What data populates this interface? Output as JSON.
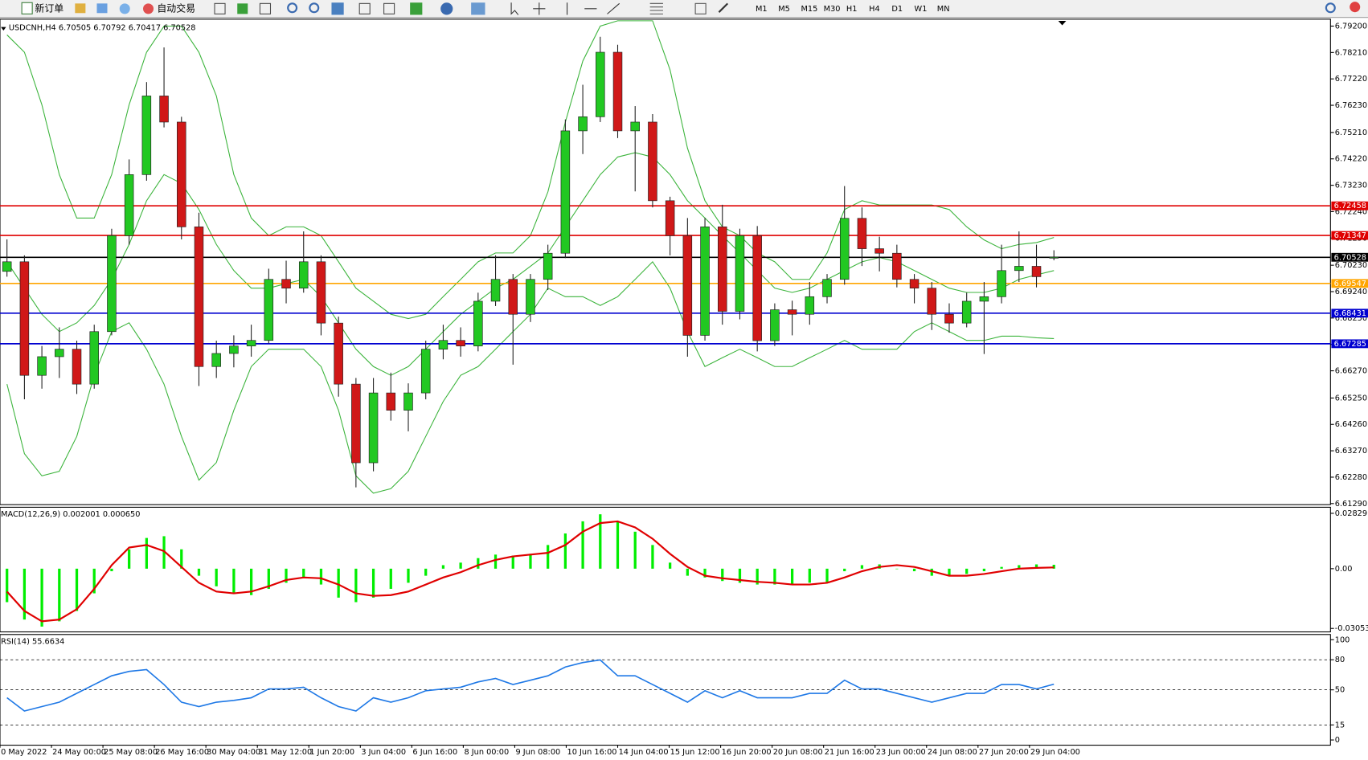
{
  "toolbar": {
    "buttons": [
      "新订单",
      "自动交易"
    ],
    "timeframes": [
      "M1",
      "M5",
      "M15",
      "M30",
      "H1",
      "H4",
      "D1",
      "W1",
      "MN"
    ]
  },
  "chart_data": [
    {
      "type": "candlestick",
      "title": "USDCNH,H4  6.70505 6.70792 6.70417 6.70528",
      "up_color": "#22c822",
      "down_color": "#d01818",
      "wick_color": "#202020",
      "ylim": [
        6.6125,
        6.7946
      ],
      "yticks": [
        {
          "value": 6.792,
          "label": "6.79200"
        },
        {
          "value": 6.7821,
          "label": "6.78210"
        },
        {
          "value": 6.7722,
          "label": "6.77220"
        },
        {
          "value": 6.7623,
          "label": "6.76230"
        },
        {
          "value": 6.7521,
          "label": "6.75210"
        },
        {
          "value": 6.7422,
          "label": "6.74220"
        },
        {
          "value": 6.7323,
          "label": "6.73230"
        },
        {
          "value": 6.7224,
          "label": "6.72240"
        },
        {
          "value": 6.7125,
          "label": "6.71250"
        },
        {
          "value": 6.7023,
          "label": "6.70230"
        },
        {
          "value": 6.6924,
          "label": "6.69240"
        },
        {
          "value": 6.6825,
          "label": "6.68250"
        },
        {
          "value": 6.6726,
          "label": "6.67260"
        },
        {
          "value": 6.6627,
          "label": "6.66270"
        },
        {
          "value": 6.6525,
          "label": "6.65250"
        },
        {
          "value": 6.6426,
          "label": "6.64260"
        },
        {
          "value": 6.6327,
          "label": "6.63270"
        },
        {
          "value": 6.6228,
          "label": "6.62280"
        },
        {
          "value": 6.6129,
          "label": "6.61290"
        }
      ],
      "x_labels": [
        "0 May 2022",
        "24 May 00:00",
        "25 May 08:00",
        "26 May 16:00",
        "30 May 04:00",
        "31 May 12:00",
        "1 Jun 20:00",
        "3 Jun 04:00",
        "6 Jun 16:00",
        "8 Jun 00:00",
        "9 Jun 08:00",
        "10 Jun 16:00",
        "14 Jun 04:00",
        "15 Jun 12:00",
        "16 Jun 20:00",
        "20 Jun 08:00",
        "21 Jun 16:00",
        "23 Jun 00:00",
        "24 Jun 08:00",
        "27 Jun 20:00",
        "29 Jun 04:00"
      ],
      "ohlc": [
        [
          6.7,
          6.712,
          6.698,
          6.7036
        ],
        [
          6.7036,
          6.706,
          6.652,
          6.661
        ],
        [
          6.661,
          6.672,
          6.656,
          6.668
        ],
        [
          6.668,
          6.679,
          6.66,
          6.6708
        ],
        [
          6.6708,
          6.674,
          6.654,
          6.6577
        ],
        [
          6.6577,
          6.68,
          6.656,
          6.6774
        ],
        [
          6.6774,
          6.716,
          6.676,
          6.7134
        ],
        [
          6.7134,
          6.742,
          6.71,
          6.7363
        ],
        [
          6.7363,
          6.771,
          6.734,
          6.7658
        ],
        [
          6.7658,
          6.784,
          6.754,
          6.756
        ],
        [
          6.756,
          6.758,
          6.712,
          6.7167
        ],
        [
          6.7167,
          6.722,
          6.657,
          6.6643
        ],
        [
          6.6643,
          6.674,
          6.66,
          6.6692
        ],
        [
          6.6692,
          6.676,
          6.664,
          6.672
        ],
        [
          6.672,
          6.68,
          6.668,
          6.6741
        ],
        [
          6.6741,
          6.701,
          6.673,
          6.697
        ],
        [
          6.697,
          6.704,
          6.688,
          6.6937
        ],
        [
          6.6937,
          6.715,
          6.692,
          6.7036
        ],
        [
          6.7036,
          6.706,
          6.676,
          6.6806
        ],
        [
          6.6806,
          6.683,
          6.653,
          6.6577
        ],
        [
          6.6577,
          6.66,
          6.619,
          6.6282
        ],
        [
          6.6282,
          6.66,
          6.625,
          6.6544
        ],
        [
          6.6544,
          6.662,
          6.644,
          6.6479
        ],
        [
          6.6479,
          6.658,
          6.64,
          6.6544
        ],
        [
          6.6544,
          6.674,
          6.652,
          6.6708
        ],
        [
          6.6708,
          6.68,
          6.667,
          6.6741
        ],
        [
          6.6741,
          6.679,
          6.668,
          6.672
        ],
        [
          6.672,
          6.692,
          6.67,
          6.6888
        ],
        [
          6.6888,
          6.706,
          6.687,
          6.697
        ],
        [
          6.697,
          6.699,
          6.665,
          6.6839
        ],
        [
          6.6839,
          6.699,
          6.681,
          6.697
        ],
        [
          6.697,
          6.71,
          6.693,
          6.7068
        ],
        [
          6.7068,
          6.757,
          6.705,
          6.7527
        ],
        [
          6.7527,
          6.77,
          6.744,
          6.758
        ],
        [
          6.758,
          6.788,
          6.756,
          6.7822
        ],
        [
          6.7822,
          6.785,
          6.75,
          6.7527
        ],
        [
          6.7527,
          6.762,
          6.73,
          6.756
        ],
        [
          6.756,
          6.759,
          6.724,
          6.7265
        ],
        [
          6.7265,
          6.728,
          6.706,
          6.7134
        ],
        [
          6.7134,
          6.72,
          6.668,
          6.676
        ],
        [
          6.676,
          6.72,
          6.674,
          6.7167
        ],
        [
          6.7167,
          6.725,
          6.68,
          6.685
        ],
        [
          6.685,
          6.716,
          6.682,
          6.7134
        ],
        [
          6.7134,
          6.717,
          6.67,
          6.674
        ],
        [
          6.674,
          6.688,
          6.672,
          6.6856
        ],
        [
          6.6856,
          6.689,
          6.676,
          6.6839
        ],
        [
          6.6839,
          6.696,
          6.68,
          6.6905
        ],
        [
          6.6905,
          6.699,
          6.688,
          6.697
        ],
        [
          6.697,
          6.732,
          6.695,
          6.7199
        ],
        [
          6.7199,
          6.724,
          6.702,
          6.7085
        ],
        [
          6.7085,
          6.713,
          6.7,
          6.7068
        ],
        [
          6.7068,
          6.71,
          6.694,
          6.697
        ],
        [
          6.697,
          6.699,
          6.688,
          6.6937
        ],
        [
          6.6937,
          6.696,
          6.678,
          6.6839
        ],
        [
          6.6839,
          6.688,
          6.677,
          6.6806
        ],
        [
          6.6806,
          6.692,
          6.679,
          6.6888
        ],
        [
          6.6888,
          6.696,
          6.669,
          6.6905
        ],
        [
          6.6905,
          6.71,
          6.688,
          6.7003
        ],
        [
          6.7003,
          6.715,
          6.696,
          6.7019
        ],
        [
          6.7019,
          6.71,
          6.694,
          6.698
        ],
        [
          6.70505,
          6.70792,
          6.70417,
          6.70528
        ]
      ],
      "bands": [
        {
          "color": "#3cb43c",
          "values": [
            6.7887,
            6.7822,
            6.7625,
            6.7363,
            6.72,
            6.72,
            6.7363,
            6.7625,
            6.7822,
            6.792,
            6.792,
            6.7822,
            6.7658,
            6.7363,
            6.72,
            6.7134,
            6.7167,
            6.7167,
            6.7134,
            6.7036,
            6.6937,
            6.6888,
            6.6839,
            6.6823,
            6.6839,
            6.6905,
            6.697,
            6.7036,
            6.7069,
            6.7069,
            6.7134,
            6.7298,
            6.756,
            6.7789,
            6.792,
            6.794,
            6.794,
            6.794,
            6.7756,
            6.7462,
            6.7265,
            6.7167,
            6.7134,
            6.7069,
            6.7036,
            6.697,
            6.697,
            6.7069,
            6.7232,
            6.7265,
            6.7249,
            6.7249,
            6.7249,
            6.7249,
            6.7232,
            6.7167,
            6.7118,
            6.7085,
            6.7101,
            6.7108,
            6.7127
          ]
        },
        {
          "color": "#3cb43c",
          "values": [
            6.7036,
            6.6937,
            6.6839,
            6.6774,
            6.6807,
            6.6872,
            6.697,
            6.7101,
            6.7265,
            6.7363,
            6.733,
            6.7232,
            6.7101,
            6.7003,
            6.6937,
            6.6937,
            6.6954,
            6.697,
            6.6905,
            6.6807,
            6.6708,
            6.6643,
            6.661,
            6.6643,
            6.6708,
            6.6774,
            6.6839,
            6.6888,
            6.6937,
            6.697,
            6.7019,
            6.7069,
            6.7167,
            6.7265,
            6.7363,
            6.7429,
            6.7445,
            6.7429,
            6.7363,
            6.7265,
            6.72,
            6.7134,
            6.7069,
            6.7003,
            6.6937,
            6.6921,
            6.6937,
            6.697,
            6.7003,
            6.7036,
            6.7052,
            6.7036,
            6.7003,
            6.697,
            6.6937,
            6.6921,
            6.6921,
            6.6937,
            6.697,
            6.6987,
            6.7003
          ]
        },
        {
          "color": "#3cb43c",
          "values": [
            6.6577,
            6.6316,
            6.6233,
            6.625,
            6.6381,
            6.661,
            6.6774,
            6.6807,
            6.6708,
            6.6577,
            6.6381,
            6.6217,
            6.6283,
            6.6479,
            6.6643,
            6.6708,
            6.6708,
            6.6708,
            6.6643,
            6.6479,
            6.6233,
            6.6168,
            6.6185,
            6.625,
            6.6381,
            6.6512,
            6.661,
            6.6643,
            6.6708,
            6.6774,
            6.6839,
            6.6937,
            6.6905,
            6.6905,
            6.6872,
            6.6905,
            6.697,
            6.7036,
            6.6937,
            6.6774,
            6.6643,
            6.6676,
            6.6708,
            6.6676,
            6.6643,
            6.6643,
            6.6676,
            6.6708,
            6.6741,
            6.6708,
            6.6708,
            6.6708,
            6.6774,
            6.6807,
            6.6774,
            6.6741,
            6.6741,
            6.6757,
            6.6757,
            6.6751,
            6.6748
          ]
        }
      ],
      "hlines": [
        {
          "value": 6.72458,
          "color": "#e00000"
        },
        {
          "value": 6.71347,
          "color": "#e00000"
        },
        {
          "value": 6.70528,
          "color": "#000000"
        },
        {
          "value": 6.69547,
          "color": "#ffa500"
        },
        {
          "value": 6.68431,
          "color": "#0000d0"
        },
        {
          "value": 6.67285,
          "color": "#0000d0"
        }
      ]
    },
    {
      "type": "macd",
      "title": "MACD(12,26,9) 0.002001 0.000650",
      "ylim": [
        -0.0323,
        0.0314
      ],
      "yticks": [
        0.02829,
        {
          "value": 0,
          "label": "0.00"
        },
        -0.030537
      ],
      "series": [
        {
          "color": "#00ee00",
          "values": [
            -0.0171,
            -0.026,
            -0.0296,
            -0.0269,
            -0.0216,
            -0.0126,
            -0.0013,
            0.0099,
            0.0157,
            0.0166,
            0.0099,
            -0.0036,
            -0.009,
            -0.0126,
            -0.0135,
            -0.0103,
            -0.0072,
            -0.0045,
            -0.0081,
            -0.0148,
            -0.0171,
            -0.0148,
            -0.0103,
            -0.0072,
            -0.0036,
            0.0018,
            0.0031,
            0.0054,
            0.0072,
            0.0067,
            0.0076,
            0.0121,
            0.018,
            0.0242,
            0.0278,
            0.0242,
            0.0189,
            0.0121,
            0.0031,
            -0.0036,
            -0.0045,
            -0.0063,
            -0.0072,
            -0.0081,
            -0.0081,
            -0.0081,
            -0.0072,
            -0.0072,
            -0.0013,
            0.0018,
            0.0022,
            0.0,
            -0.0013,
            -0.0036,
            -0.0036,
            -0.0027,
            -0.0013,
            0.0009,
            0.0018,
            0.0022,
            0.002001
          ]
        },
        {
          "color": "#e00000",
          "values": [
            -0.0117,
            -0.0216,
            -0.0269,
            -0.026,
            -0.0207,
            -0.0103,
            0.0018,
            0.0108,
            0.0121,
            0.009,
            0.0009,
            -0.0072,
            -0.0117,
            -0.0126,
            -0.0117,
            -0.009,
            -0.0058,
            -0.0045,
            -0.0049,
            -0.0081,
            -0.0126,
            -0.0139,
            -0.0135,
            -0.0117,
            -0.0081,
            -0.0045,
            -0.0018,
            0.0018,
            0.0045,
            0.0063,
            0.0072,
            0.0081,
            0.0121,
            0.0189,
            0.0233,
            0.0242,
            0.0211,
            0.0153,
            0.0076,
            0.0009,
            -0.0036,
            -0.0049,
            -0.0058,
            -0.0067,
            -0.0072,
            -0.0081,
            -0.0081,
            -0.0072,
            -0.0045,
            -0.0013,
            0.0009,
            0.0018,
            0.0009,
            -0.0013,
            -0.0036,
            -0.0036,
            -0.0027,
            -0.0013,
            0.0,
            0.0004,
            0.00065
          ]
        }
      ]
    },
    {
      "type": "line",
      "title": "RSI(14) 55.6634",
      "ylim": [
        -5.2,
        105.2
      ],
      "yticks": [
        0,
        15,
        50,
        80,
        100
      ],
      "levels": [
        15,
        50,
        80
      ],
      "series": [
        {
          "color": "#1e78e6",
          "values": [
            42.1,
            28.9,
            33.3,
            37.7,
            46.5,
            55.3,
            64.0,
            68.4,
            70.2,
            55.3,
            37.7,
            33.3,
            37.7,
            39.5,
            42.1,
            50.9,
            50.9,
            52.6,
            42.1,
            33.3,
            28.9,
            42.1,
            37.7,
            42.1,
            49.1,
            50.9,
            52.6,
            57.9,
            61.4,
            55.3,
            59.6,
            64.0,
            72.8,
            77.2,
            79.8,
            64.0,
            64.0,
            55.3,
            46.5,
            37.7,
            49.1,
            42.1,
            49.1,
            42.1,
            42.1,
            42.1,
            46.5,
            46.5,
            59.6,
            50.9,
            50.9,
            46.5,
            42.1,
            37.7,
            42.1,
            46.5,
            46.5,
            55.3,
            55.3,
            50.9,
            55.6634
          ]
        }
      ]
    }
  ]
}
